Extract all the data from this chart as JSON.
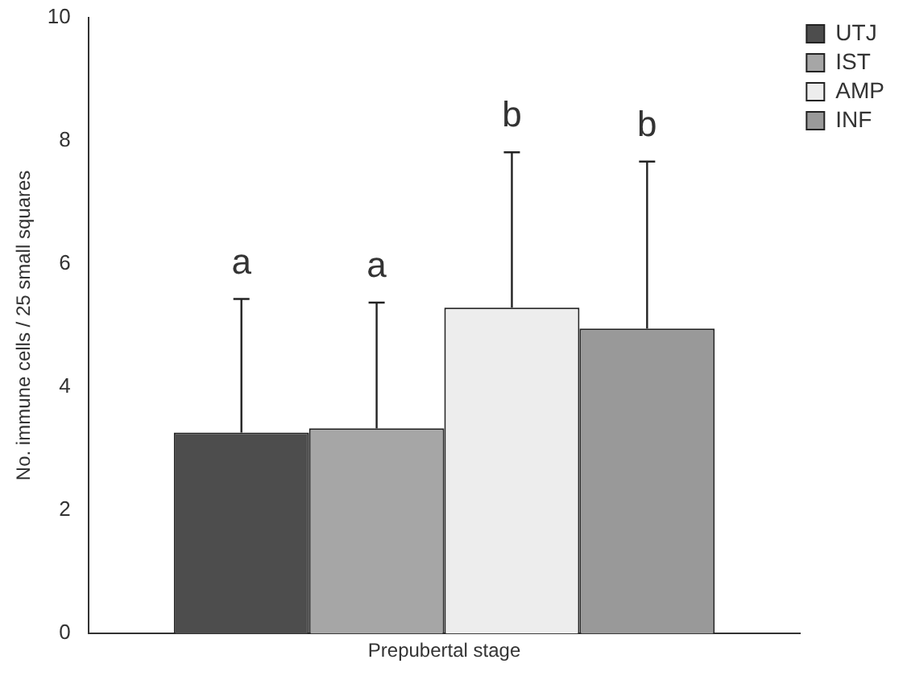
{
  "chart_data": {
    "type": "bar",
    "xlabel": "Prepubertal stage",
    "ylabel": "No. immune cells / 25 small squares",
    "categories": [
      null
    ],
    "series": [
      {
        "name": "UTJ",
        "color": "#4d4d4d",
        "values": [
          3.26
        ],
        "errors": [
          [
            3.26,
            5.43
          ]
        ]
      },
      {
        "name": "IST",
        "color": "#a6a6a6",
        "values": [
          3.33
        ],
        "errors": [
          [
            3.33,
            5.37
          ]
        ]
      },
      {
        "name": "AMP",
        "color": "#ededed",
        "values": [
          5.29
        ],
        "errors": [
          [
            5.29,
            7.81
          ]
        ]
      },
      {
        "name": "INF",
        "color": "#999999",
        "values": [
          4.95
        ],
        "errors": [
          [
            4.95,
            7.66
          ]
        ]
      }
    ],
    "annotations": [
      "a",
      "a",
      "b",
      "b"
    ],
    "ylim": [
      0,
      10
    ],
    "yticks": [
      0,
      2,
      4,
      6,
      8,
      10
    ],
    "grid": false,
    "legend": "top right"
  }
}
